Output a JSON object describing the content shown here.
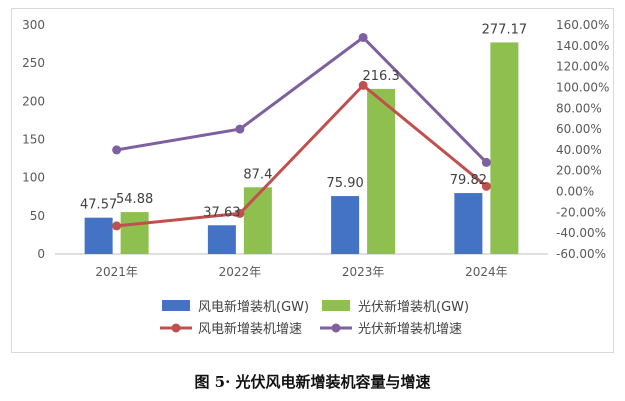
{
  "caption": "图 5· 光伏风电新增装机容量与增速",
  "chart_data": {
    "type": "bar",
    "categories": [
      "2021年",
      "2022年",
      "2023年",
      "2024年"
    ],
    "series": [
      {
        "name": "风电新增装机(GW)",
        "kind": "bar",
        "axis": "left",
        "color": "#4472c4",
        "values": [
          47.57,
          37.63,
          75.9,
          79.82
        ],
        "labels": [
          "47.57",
          "37.63",
          "75.90",
          "79.82"
        ]
      },
      {
        "name": "光伏新增装机(GW)",
        "kind": "bar",
        "axis": "left",
        "color": "#8fbf4f",
        "values": [
          54.88,
          87.4,
          216.3,
          277.17
        ],
        "labels": [
          "54.88",
          "87.4",
          "216.3",
          "277.17"
        ]
      },
      {
        "name": "风电新增装机增速",
        "kind": "line",
        "axis": "right",
        "color": "#c0504d",
        "values": [
          -33.0,
          -21.0,
          102.0,
          5.0
        ]
      },
      {
        "name": "光伏新增装机增速",
        "kind": "line",
        "axis": "right",
        "color": "#7e60a0",
        "values": [
          40.0,
          60.0,
          148.0,
          28.0
        ]
      }
    ],
    "left_axis": {
      "min": 0,
      "max": 300,
      "step": 50,
      "ticks": [
        "0",
        "50",
        "100",
        "150",
        "200",
        "250",
        "300"
      ]
    },
    "right_axis": {
      "min": -60,
      "max": 160,
      "step": 20,
      "ticks": [
        "-60.00%",
        "-40.00%",
        "-20.00%",
        "0.00%",
        "20.00%",
        "40.00%",
        "60.00%",
        "80.00%",
        "100.00%",
        "120.00%",
        "140.00%",
        "160.00%"
      ]
    },
    "legend_position": "bottom"
  }
}
